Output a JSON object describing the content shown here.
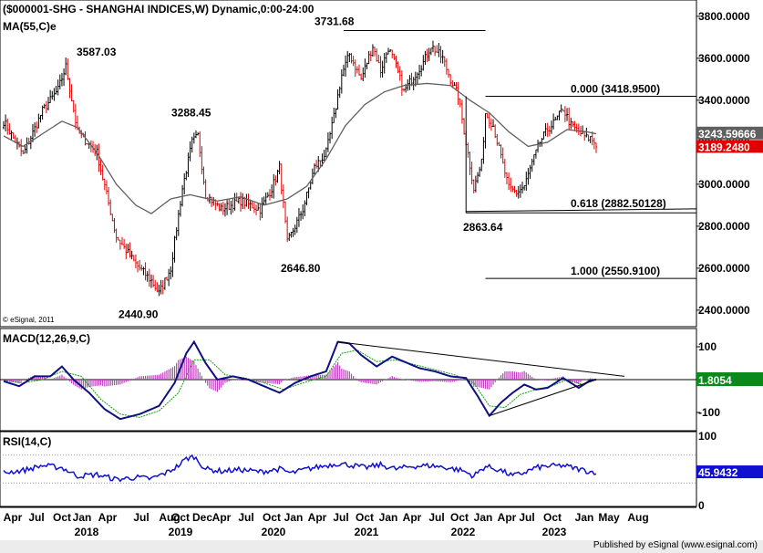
{
  "header": {
    "title": "($000001-SHG - SHANGHAI INDICES,W) Dynamic,0:00-24:00",
    "ma_label": "MA(55,C)e",
    "copyright": "© eSignal, 2011"
  },
  "footer": {
    "text": "Published by eSignal (www.esignal.com)"
  },
  "colors": {
    "up": "#000000",
    "down": "#e00000",
    "ma": "#606060",
    "macd": "#101080",
    "signal": "#10a010",
    "hist": "#c040c0",
    "rsi": "#1010d0",
    "fib_green": "#008000"
  },
  "chart_data": [
    {
      "type": "candlestick",
      "title": "($000001-SHG - SHANGHAI INDICES,W) Dynamic,0:00-24:00",
      "ylim": [
        2330,
        3860
      ],
      "y_ticks": [
        "3800.0000",
        "3600.0000",
        "3400.0000",
        "3200.0000",
        "3000.0000",
        "2800.0000",
        "2600.0000",
        "2400.0000"
      ],
      "y_tick_values": [
        3800,
        3600,
        3400,
        3200,
        3000,
        2800,
        2600,
        2400
      ],
      "x_month_labels": [
        "Apr",
        "Jul",
        "Oct",
        "Jan",
        "Apr",
        "Jul",
        "Aug",
        "Oct",
        "Dec",
        "Apr",
        "Jul",
        "Oct",
        "Jan",
        "Apr",
        "Jul",
        "Oct",
        "Jan",
        "Apr",
        "Jul",
        "Oct",
        "Jan",
        "Apr",
        "Jul",
        "Oct",
        "Jan",
        "May",
        "Aug"
      ],
      "x_year_labels": [
        "2018",
        "2019",
        "2020",
        "2021",
        "2022",
        "2023"
      ],
      "close_anchors": [
        [
          0,
          3300
        ],
        [
          10,
          3140
        ],
        [
          20,
          3350
        ],
        [
          28,
          3450
        ],
        [
          32,
          3560
        ],
        [
          38,
          3250
        ],
        [
          48,
          3150
        ],
        [
          58,
          2750
        ],
        [
          68,
          2620
        ],
        [
          76,
          2540
        ],
        [
          80,
          2480
        ],
        [
          86,
          2600
        ],
        [
          92,
          2980
        ],
        [
          97,
          3200
        ],
        [
          100,
          3230
        ],
        [
          104,
          2950
        ],
        [
          112,
          2880
        ],
        [
          122,
          2920
        ],
        [
          132,
          2880
        ],
        [
          138,
          2980
        ],
        [
          142,
          3080
        ],
        [
          146,
          2720
        ],
        [
          150,
          2800
        ],
        [
          154,
          2880
        ],
        [
          160,
          3080
        ],
        [
          166,
          3150
        ],
        [
          170,
          3320
        ],
        [
          174,
          3520
        ],
        [
          178,
          3620
        ],
        [
          184,
          3500
        ],
        [
          190,
          3660
        ],
        [
          194,
          3540
        ],
        [
          198,
          3650
        ],
        [
          202,
          3560
        ],
        [
          206,
          3440
        ],
        [
          210,
          3500
        ],
        [
          216,
          3580
        ],
        [
          220,
          3660
        ],
        [
          226,
          3600
        ],
        [
          230,
          3500
        ],
        [
          234,
          3420
        ],
        [
          238,
          3200
        ],
        [
          242,
          2980
        ],
        [
          246,
          3100
        ],
        [
          248,
          3340
        ],
        [
          252,
          3280
        ],
        [
          256,
          3130
        ],
        [
          260,
          2980
        ],
        [
          264,
          2960
        ],
        [
          268,
          2990
        ],
        [
          272,
          3100
        ],
        [
          276,
          3200
        ],
        [
          280,
          3260
        ],
        [
          284,
          3300
        ],
        [
          288,
          3360
        ],
        [
          292,
          3280
        ],
        [
          296,
          3250
        ],
        [
          300,
          3220
        ],
        [
          302,
          3220
        ],
        [
          305,
          3190
        ]
      ],
      "ma55_anchors": [
        [
          0,
          3230
        ],
        [
          10,
          3180
        ],
        [
          20,
          3240
        ],
        [
          30,
          3300
        ],
        [
          38,
          3270
        ],
        [
          48,
          3150
        ],
        [
          58,
          3000
        ],
        [
          68,
          2900
        ],
        [
          76,
          2860
        ],
        [
          86,
          2930
        ],
        [
          96,
          2950
        ],
        [
          110,
          2920
        ],
        [
          122,
          2940
        ],
        [
          134,
          2900
        ],
        [
          146,
          2930
        ],
        [
          156,
          2990
        ],
        [
          166,
          3120
        ],
        [
          176,
          3280
        ],
        [
          186,
          3380
        ],
        [
          196,
          3440
        ],
        [
          206,
          3470
        ],
        [
          218,
          3480
        ],
        [
          230,
          3470
        ],
        [
          240,
          3400
        ],
        [
          250,
          3340
        ],
        [
          260,
          3250
        ],
        [
          270,
          3180
        ],
        [
          280,
          3200
        ],
        [
          290,
          3260
        ],
        [
          300,
          3250
        ],
        [
          305,
          3240
        ]
      ],
      "current_values": {
        "ma55": "3243.59666",
        "price": "3189.2480"
      },
      "annotations": [
        {
          "text": "3587.03",
          "value": 3587.03
        },
        {
          "text": "3288.45",
          "value": 3288.45
        },
        {
          "text": "3731.68",
          "value": 3731.68
        },
        {
          "text": "2440.90",
          "value": 2440.9
        },
        {
          "text": "2646.80",
          "value": 2646.8
        },
        {
          "text": "2863.64",
          "value": 2863.64
        },
        {
          "text": "0.000 (3418.9500)",
          "value": 3418.95
        },
        {
          "text": "0.618 (2882.50128)",
          "value": 2882.50128
        },
        {
          "text": "1.000 (2550.9100)",
          "value": 2550.91
        }
      ]
    },
    {
      "type": "line",
      "title": "MACD(12,26,9,C)",
      "ylim": [
        -150,
        150
      ],
      "y_ticks": [
        "100",
        "-100"
      ],
      "y_tick_values": [
        100,
        -100
      ],
      "current_value": "1.8054",
      "macd_anchors": [
        [
          0,
          -5
        ],
        [
          8,
          -20
        ],
        [
          16,
          10
        ],
        [
          24,
          10
        ],
        [
          30,
          40
        ],
        [
          36,
          0
        ],
        [
          44,
          -40
        ],
        [
          52,
          -90
        ],
        [
          60,
          -120
        ],
        [
          70,
          -105
        ],
        [
          80,
          -80
        ],
        [
          88,
          -10
        ],
        [
          94,
          80
        ],
        [
          98,
          115
        ],
        [
          104,
          50
        ],
        [
          110,
          0
        ],
        [
          118,
          10
        ],
        [
          126,
          0
        ],
        [
          134,
          -20
        ],
        [
          142,
          -40
        ],
        [
          150,
          -10
        ],
        [
          158,
          10
        ],
        [
          166,
          25
        ],
        [
          172,
          115
        ],
        [
          178,
          110
        ],
        [
          184,
          75
        ],
        [
          192,
          40
        ],
        [
          200,
          70
        ],
        [
          206,
          55
        ],
        [
          214,
          35
        ],
        [
          222,
          25
        ],
        [
          230,
          10
        ],
        [
          238,
          5
        ],
        [
          244,
          -50
        ],
        [
          250,
          -110
        ],
        [
          256,
          -70
        ],
        [
          262,
          -40
        ],
        [
          268,
          -15
        ],
        [
          274,
          -30
        ],
        [
          280,
          -25
        ],
        [
          288,
          5
        ],
        [
          296,
          -25
        ],
        [
          302,
          -2
        ],
        [
          305,
          0
        ]
      ],
      "signal_anchors": [
        [
          0,
          -2
        ],
        [
          10,
          -10
        ],
        [
          20,
          0
        ],
        [
          30,
          25
        ],
        [
          40,
          10
        ],
        [
          50,
          -60
        ],
        [
          60,
          -105
        ],
        [
          70,
          -115
        ],
        [
          80,
          -95
        ],
        [
          90,
          -40
        ],
        [
          98,
          60
        ],
        [
          106,
          60
        ],
        [
          114,
          15
        ],
        [
          124,
          5
        ],
        [
          134,
          -10
        ],
        [
          144,
          -30
        ],
        [
          154,
          -10
        ],
        [
          166,
          10
        ],
        [
          174,
          80
        ],
        [
          182,
          90
        ],
        [
          192,
          55
        ],
        [
          202,
          60
        ],
        [
          212,
          45
        ],
        [
          222,
          30
        ],
        [
          232,
          15
        ],
        [
          242,
          -10
        ],
        [
          250,
          -80
        ],
        [
          258,
          -85
        ],
        [
          266,
          -45
        ],
        [
          274,
          -30
        ],
        [
          282,
          -20
        ],
        [
          290,
          0
        ],
        [
          298,
          -15
        ],
        [
          305,
          0
        ]
      ]
    },
    {
      "type": "line",
      "title": "RSI(14,C)",
      "ylim": [
        0,
        100
      ],
      "y_ticks": [
        "100",
        "0"
      ],
      "y_tick_values": [
        100,
        0
      ],
      "guides": [
        70,
        30
      ],
      "current_value": "45.9432",
      "rsi_anchors": [
        [
          0,
          45
        ],
        [
          10,
          48
        ],
        [
          20,
          55
        ],
        [
          30,
          52
        ],
        [
          38,
          40
        ],
        [
          48,
          42
        ],
        [
          58,
          35
        ],
        [
          68,
          38
        ],
        [
          76,
          36
        ],
        [
          84,
          45
        ],
        [
          90,
          55
        ],
        [
          94,
          65
        ],
        [
          98,
          68
        ],
        [
          104,
          50
        ],
        [
          112,
          47
        ],
        [
          122,
          49
        ],
        [
          132,
          46
        ],
        [
          142,
          50
        ],
        [
          148,
          44
        ],
        [
          156,
          50
        ],
        [
          164,
          54
        ],
        [
          172,
          58
        ],
        [
          178,
          56
        ],
        [
          186,
          52
        ],
        [
          194,
          56
        ],
        [
          202,
          50
        ],
        [
          210,
          54
        ],
        [
          220,
          55
        ],
        [
          228,
          52
        ],
        [
          236,
          48
        ],
        [
          242,
          40
        ],
        [
          248,
          54
        ],
        [
          256,
          48
        ],
        [
          262,
          40
        ],
        [
          268,
          45
        ],
        [
          274,
          52
        ],
        [
          280,
          54
        ],
        [
          288,
          55
        ],
        [
          296,
          50
        ],
        [
          302,
          46
        ],
        [
          305,
          46
        ]
      ]
    }
  ]
}
